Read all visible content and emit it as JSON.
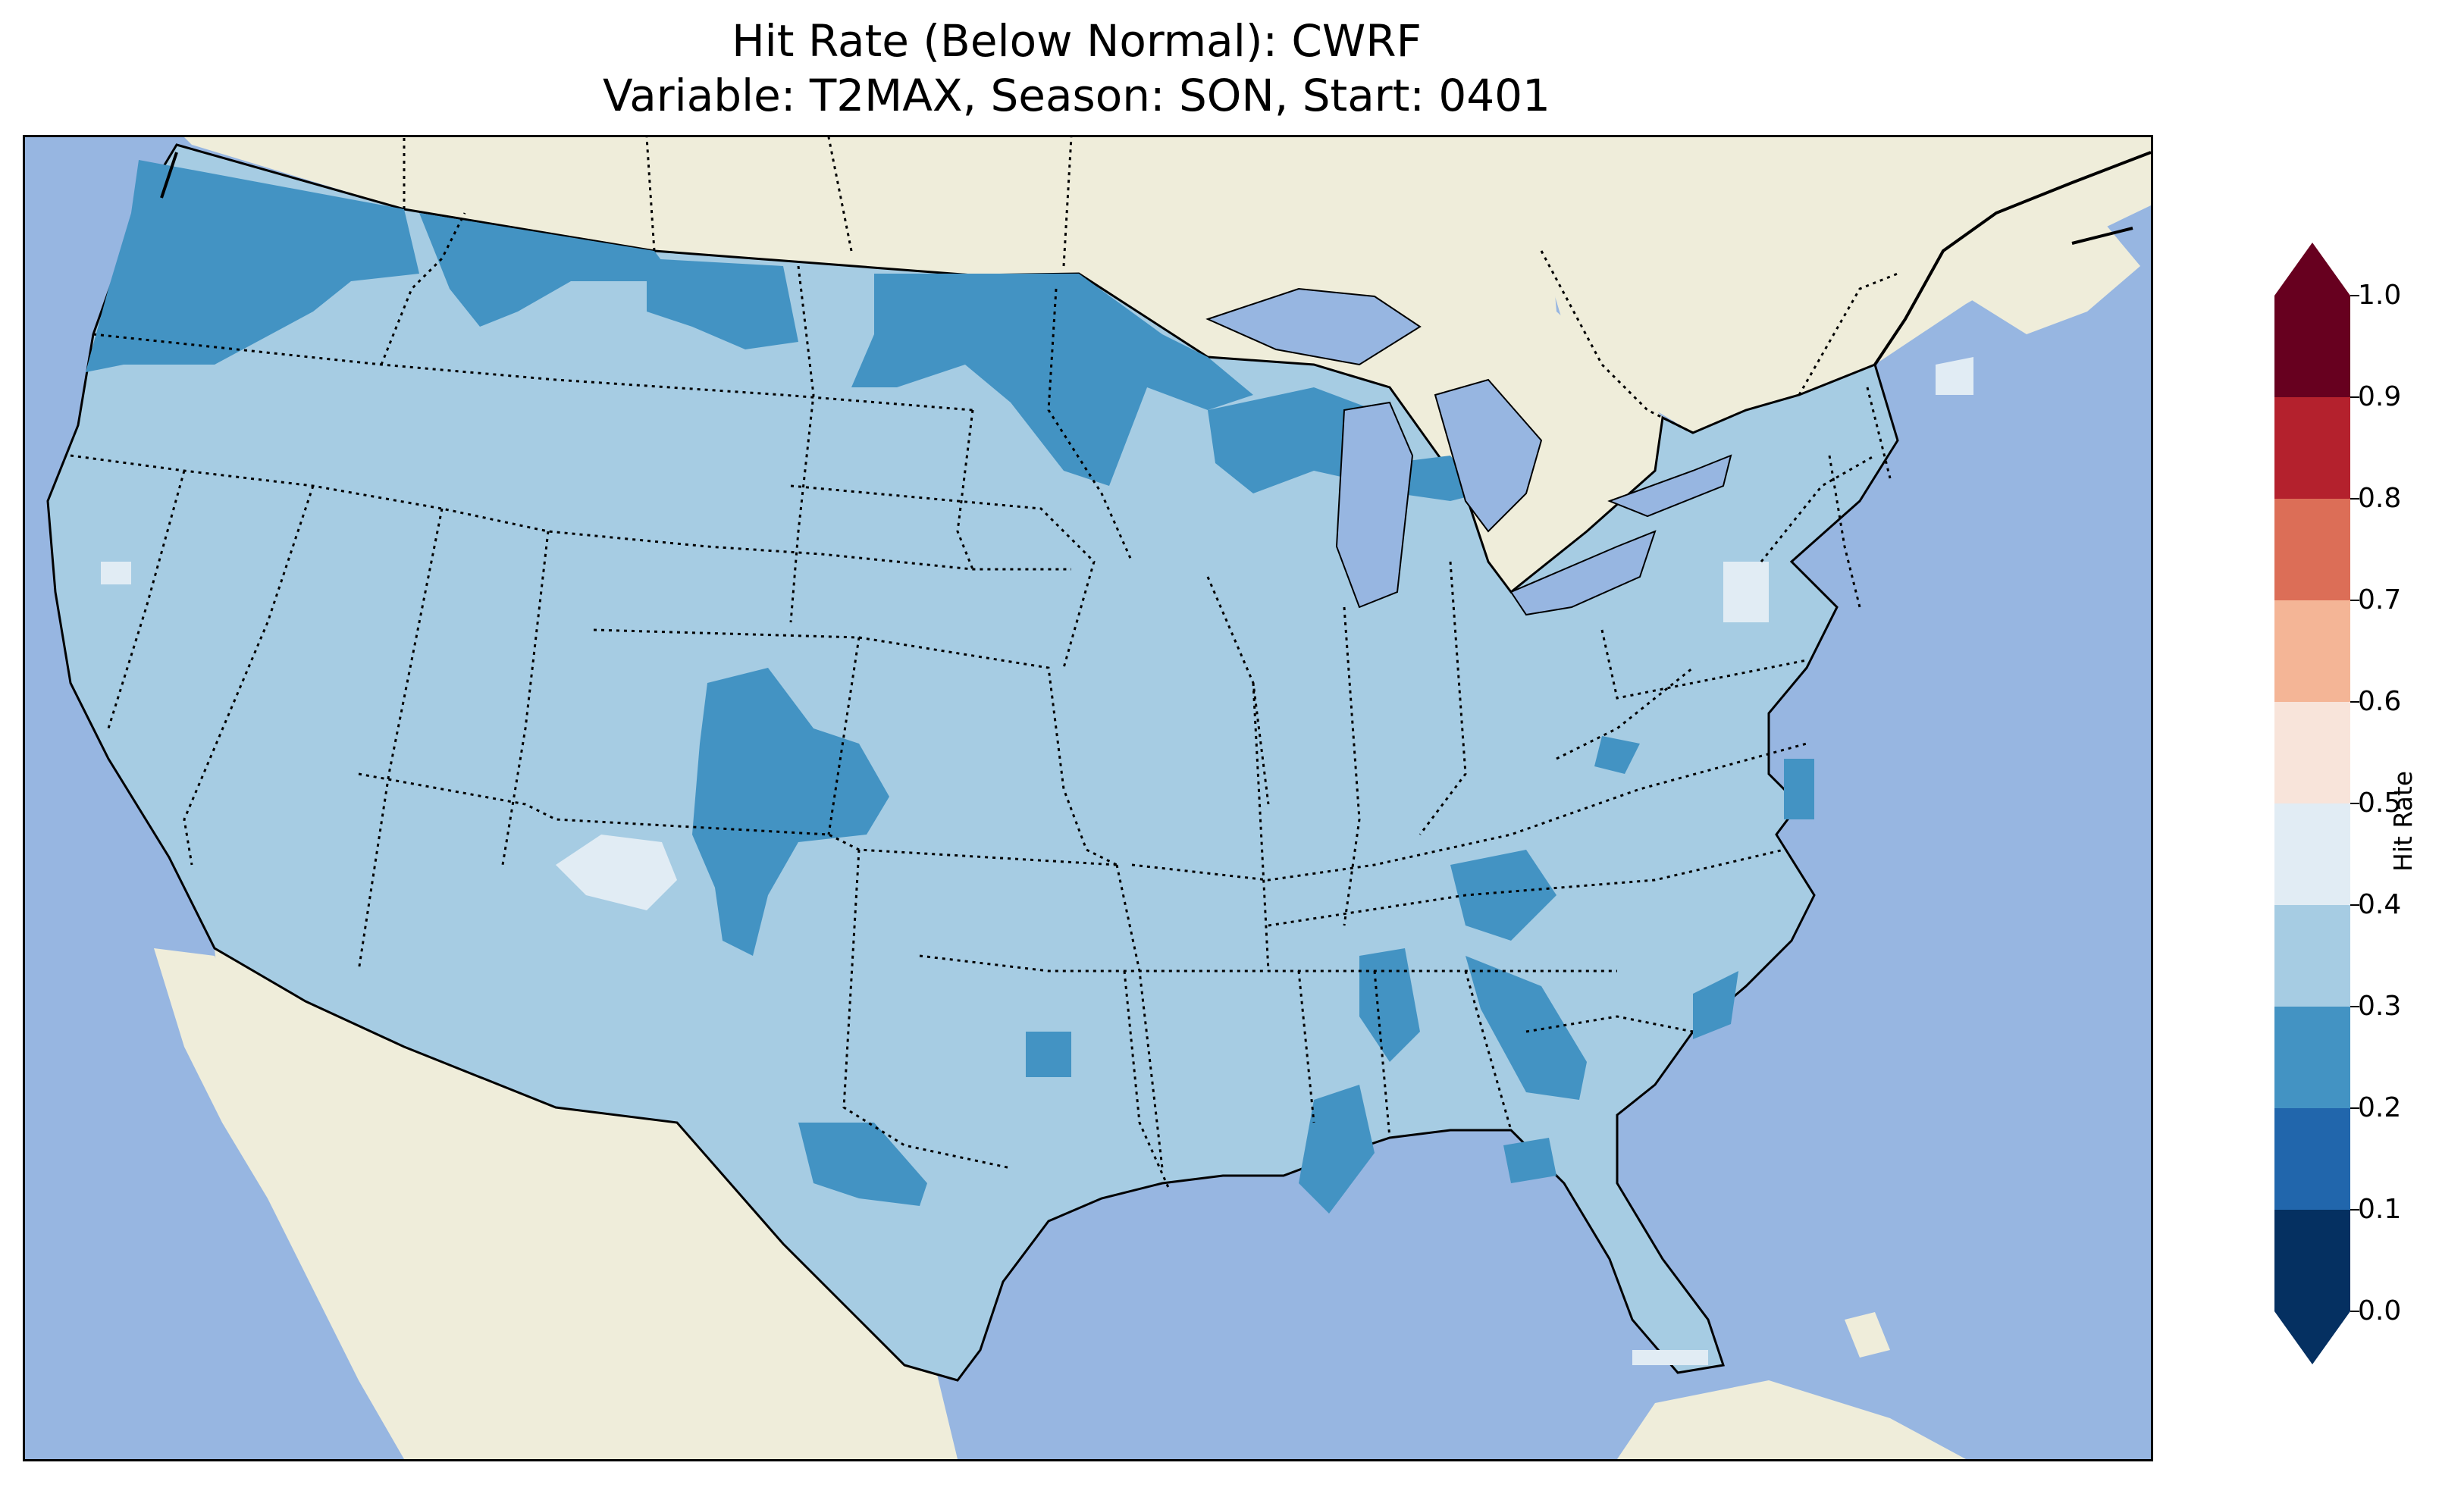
{
  "title": {
    "line1": "Hit Rate (Below Normal): CWRF",
    "line2": "Variable: T2MAX, Season: SON, Start: 0401"
  },
  "map": {
    "ocean_color": "#97b6e1",
    "land_color": "#efedda",
    "region": "Contiguous United States",
    "border_style": "dotted state boundaries, solid coastlines"
  },
  "colorbar": {
    "label": "Hit Rate",
    "extend": "both",
    "ticks": [
      "0.0",
      "0.1",
      "0.2",
      "0.3",
      "0.4",
      "0.5",
      "0.6",
      "0.7",
      "0.8",
      "0.9",
      "1.0"
    ],
    "bins": [
      {
        "range": [
          0.0,
          0.1
        ],
        "color": "#053061"
      },
      {
        "range": [
          0.1,
          0.2
        ],
        "color": "#2166ac"
      },
      {
        "range": [
          0.2,
          0.3
        ],
        "color": "#4393c3"
      },
      {
        "range": [
          0.3,
          0.4
        ],
        "color": "#a6cce3"
      },
      {
        "range": [
          0.4,
          0.5
        ],
        "color": "#e1ecf4"
      },
      {
        "range": [
          0.5,
          0.6
        ],
        "color": "#f8e4da"
      },
      {
        "range": [
          0.6,
          0.7
        ],
        "color": "#f4b596"
      },
      {
        "range": [
          0.7,
          0.8
        ],
        "color": "#dc6e57"
      },
      {
        "range": [
          0.8,
          0.9
        ],
        "color": "#b4212d"
      },
      {
        "range": [
          0.9,
          1.0
        ],
        "color": "#67001f"
      }
    ],
    "under_color": "#053061",
    "over_color": "#67001f"
  },
  "field": {
    "dominant_bin": "0.3-0.4",
    "regions_0.2_0.3": [
      "Pacific Northwest",
      "Northern Rockies / Montana",
      "Upper Midwest / Minnesota",
      "Wisconsin / Upper Michigan",
      "Colorado",
      "West Texas",
      "Louisiana / Mississippi",
      "Alabama / Georgia",
      "Tennessee",
      "Carolina coast"
    ],
    "regions_0.4_0.5": [
      "Southwest Utah",
      "Central Pennsylvania",
      "Northern Maine",
      "Northern California coast"
    ]
  }
}
